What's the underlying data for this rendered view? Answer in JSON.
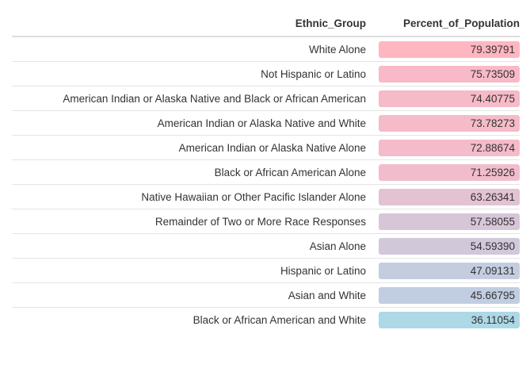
{
  "chart_data": {
    "type": "table",
    "columns": [
      "Ethnic_Group",
      "Percent_of_Population"
    ],
    "rows": [
      {
        "group": "White Alone",
        "value": "79.39791",
        "color": "#ffb6c1"
      },
      {
        "group": "Not Hispanic or Latino",
        "value": "75.73509",
        "color": "#f9b9c6"
      },
      {
        "group": "American Indian or Alaska Native and Black or African American",
        "value": "74.40775",
        "color": "#f7bac8"
      },
      {
        "group": "American Indian or Alaska Native and White",
        "value": "73.78273",
        "color": "#f6bbc9"
      },
      {
        "group": "American Indian or Alaska Native Alone",
        "value": "72.88674",
        "color": "#f4bbca"
      },
      {
        "group": "Black or African American Alone",
        "value": "71.25926",
        "color": "#f1bdcc"
      },
      {
        "group": "Native Hawaiian or Other Pacific Islander Alone",
        "value": "63.26341",
        "color": "#e2c2d3"
      },
      {
        "group": "Remainder of Two or More Race Responses",
        "value": "57.58055",
        "color": "#d7c6d8"
      },
      {
        "group": "Asian Alone",
        "value": "54.59390",
        "color": "#d2c8da"
      },
      {
        "group": "Hispanic or Latino",
        "value": "47.09131",
        "color": "#c4cde0"
      },
      {
        "group": "Asian and White",
        "value": "45.66795",
        "color": "#c1cee1"
      },
      {
        "group": "Black or African American and White",
        "value": "36.11054",
        "color": "#add8e6"
      }
    ]
  }
}
